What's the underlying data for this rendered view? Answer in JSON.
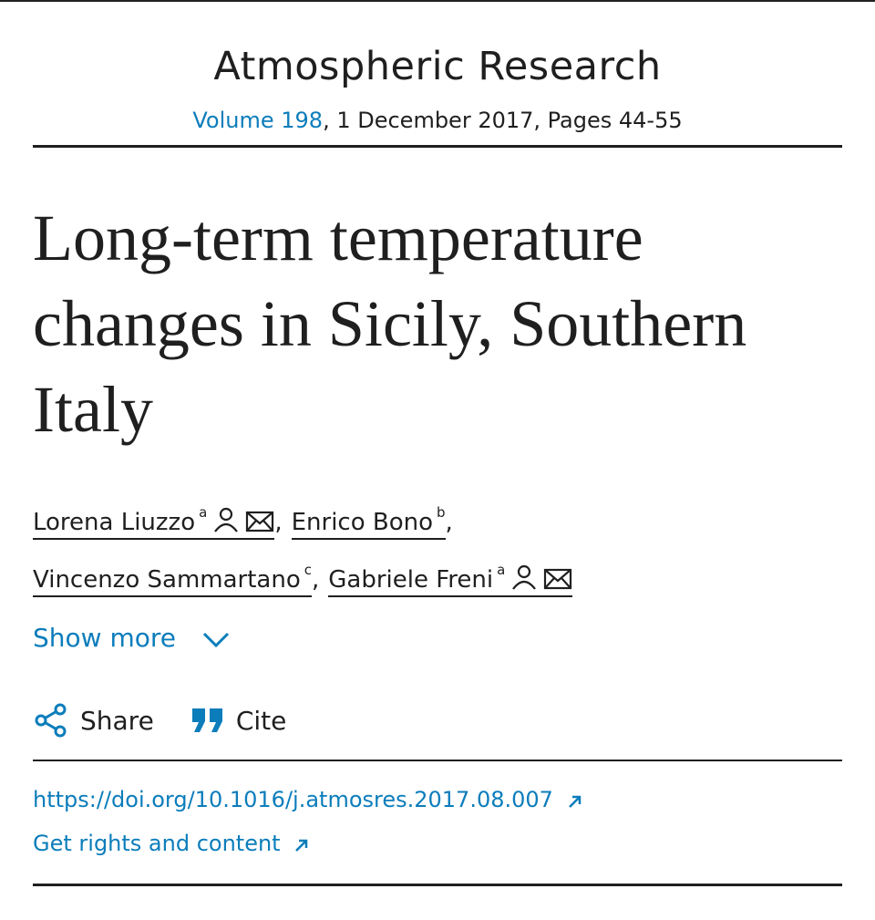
{
  "journal": {
    "name": "Atmospheric Research",
    "volume": "Volume 198",
    "details": ", 1 December 2017, Pages 44-55"
  },
  "article": {
    "title": "Long-term temperature changes in Sicily, Southern Italy"
  },
  "authors": [
    {
      "name": "Lorena Liuzzo",
      "affiliation": "a",
      "suffix": ","
    },
    {
      "name": "Enrico Bono",
      "affiliation": "b",
      "suffix": ","
    },
    {
      "name": "Vincenzo Sammartano",
      "affiliation": "c",
      "suffix": ","
    },
    {
      "name": "Gabriele Freni",
      "affiliation": "a"
    }
  ],
  "show_more": "Show more",
  "actions": {
    "share": "Share",
    "cite": "Cite"
  },
  "links": {
    "doi": "https://doi.org/10.1016/j.atmosres.2017.08.007",
    "rights": "Get rights and content"
  }
}
